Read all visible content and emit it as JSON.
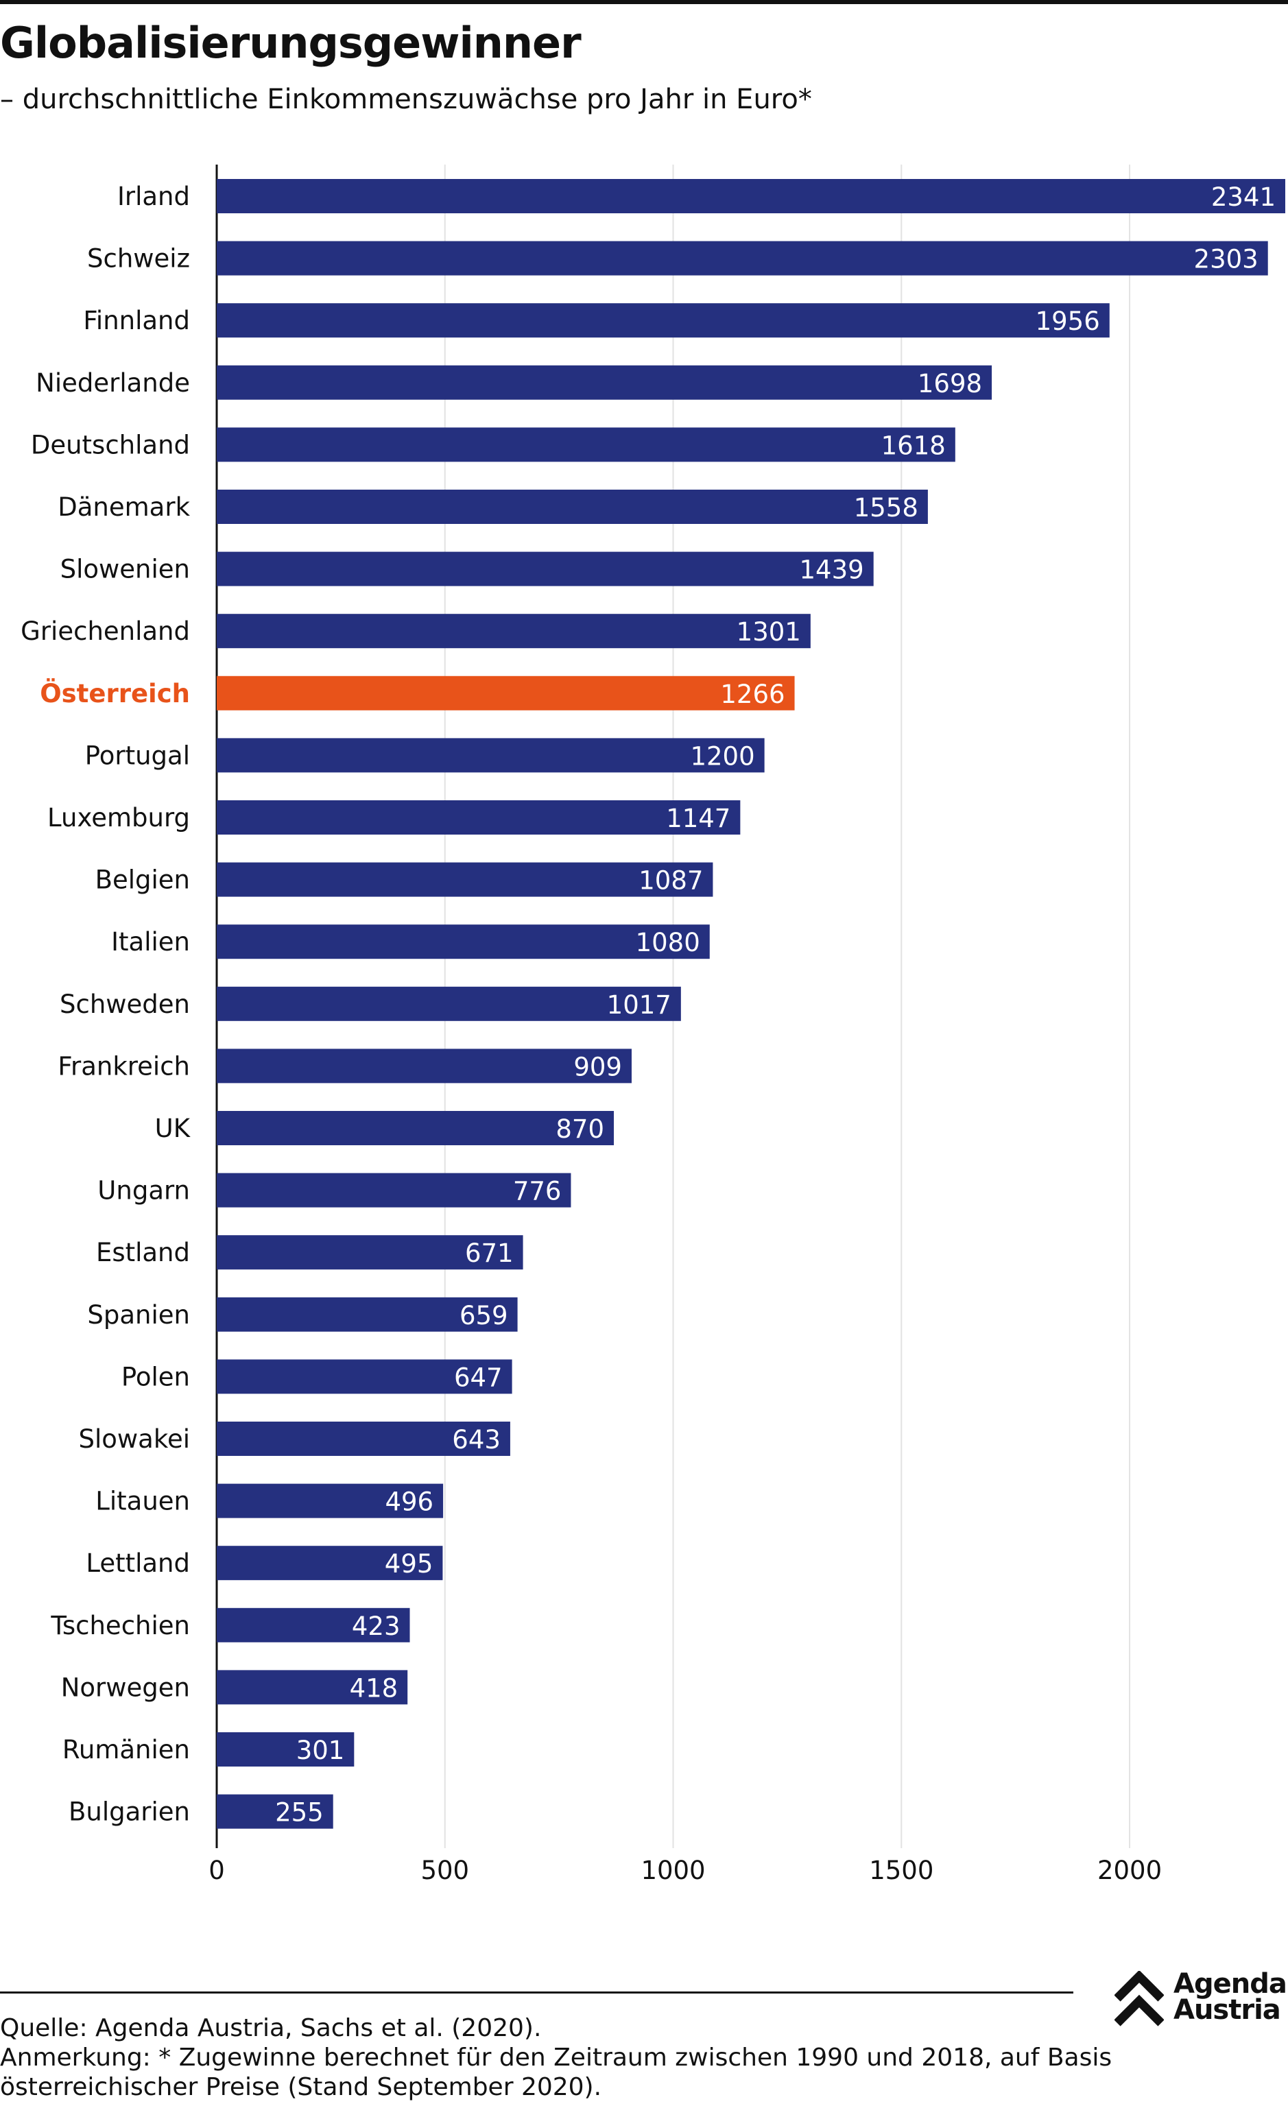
{
  "title": "Globalisierungsgewinner",
  "subtitle": "– durchschnittliche Einkommenszuwächse pro Jahr in Euro*",
  "chart_data": {
    "type": "bar",
    "orientation": "horizontal",
    "categories": [
      "Irland",
      "Schweiz",
      "Finnland",
      "Niederlande",
      "Deutschland",
      "Dänemark",
      "Slowenien",
      "Griechenland",
      "Österreich",
      "Portugal",
      "Luxemburg",
      "Belgien",
      "Italien",
      "Schweden",
      "Frankreich",
      "UK",
      "Ungarn",
      "Estland",
      "Spanien",
      "Polen",
      "Slowakei",
      "Litauen",
      "Lettland",
      "Tschechien",
      "Norwegen",
      "Rumänien",
      "Bulgarien"
    ],
    "values": [
      2341,
      2303,
      1956,
      1698,
      1618,
      1558,
      1439,
      1301,
      1266,
      1200,
      1147,
      1087,
      1080,
      1017,
      909,
      870,
      776,
      671,
      659,
      647,
      643,
      496,
      495,
      423,
      418,
      301,
      255
    ],
    "highlight": "Österreich",
    "xlim": [
      0,
      2341
    ],
    "xticks": [
      0,
      500,
      1000,
      1500,
      2000
    ],
    "grid": true,
    "data_labels": true,
    "colors": {
      "bar": "#25307f",
      "highlight": "#e8531a",
      "grid": "#e2e2e2",
      "label_text": "#ffffff"
    }
  },
  "footer": {
    "source": "Quelle: Agenda Austria, Sachs et al. (2020).",
    "note_line1": "Anmerkung: * Zugewinne berechnet für den Zeitraum zwischen 1990 und 2018, auf Basis",
    "note_line2": "österreichischer Preise (Stand September 2020).",
    "logo_line1": "Agenda",
    "logo_line2": "Austria",
    "logo_icon": "double-chevron-up-icon"
  }
}
